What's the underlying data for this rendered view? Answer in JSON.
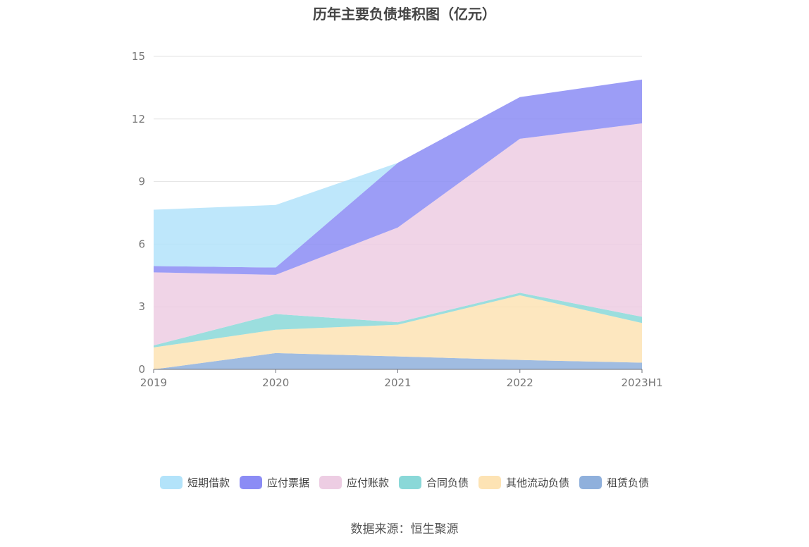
{
  "chart_data": {
    "type": "area",
    "title": "历年主要负债堆积图（亿元）",
    "stacked": true,
    "categories": [
      "2019",
      "2020",
      "2021",
      "2022",
      "2023H1"
    ],
    "series": [
      {
        "name": "租赁负债",
        "color": "#8fb0dc",
        "values": [
          0.0,
          0.78,
          0.62,
          0.45,
          0.32
        ]
      },
      {
        "name": "其他流动负债",
        "color": "#fde3b4",
        "values": [
          1.05,
          1.12,
          1.52,
          3.1,
          1.9
        ]
      },
      {
        "name": "合同负债",
        "color": "#8ad8d8",
        "values": [
          0.1,
          0.75,
          0.12,
          0.12,
          0.3
        ]
      },
      {
        "name": "应付账款",
        "color": "#edcde3",
        "values": [
          3.5,
          1.88,
          4.54,
          7.38,
          9.27
        ]
      },
      {
        "name": "应付票据",
        "color": "#8b8cf5",
        "values": [
          0.3,
          0.35,
          3.1,
          2.0,
          2.1
        ]
      },
      {
        "name": "短期借款",
        "color": "#b3e3fa",
        "values": [
          2.7,
          3.0,
          0.0,
          0.0,
          0.0
        ]
      }
    ],
    "ylim": [
      0,
      15
    ],
    "yticks": [
      "0",
      "3",
      "6",
      "9",
      "12",
      "15"
    ],
    "grid": true,
    "legend_position": "bottom",
    "legend_order": [
      "短期借款",
      "应付票据",
      "应付账款",
      "合同负债",
      "其他流动负债",
      "租赁负债"
    ]
  },
  "source_note": "数据来源：恒生聚源"
}
